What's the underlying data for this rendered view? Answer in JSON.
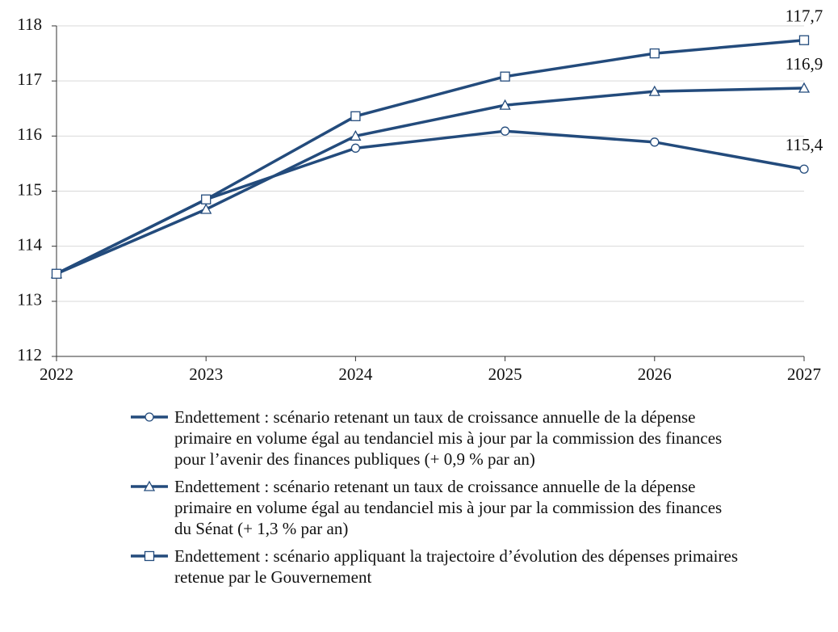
{
  "chart_data": {
    "type": "line",
    "categories": [
      "2022",
      "2023",
      "2024",
      "2025",
      "2026",
      "2027"
    ],
    "ylim": [
      112,
      118
    ],
    "yticks": [
      112,
      113,
      114,
      115,
      116,
      117,
      118
    ],
    "grid": true,
    "series": [
      {
        "name": "Endettement : scénario retenant un taux de croissance annuelle de la dépense primaire en volume égal au tendanciel mis à jour par la commission des finances pour l’avenir des finances publiques (+ 0,9 % par an)",
        "color": "#234b7c",
        "marker": "circle",
        "values": [
          113.5,
          114.85,
          115.78,
          116.09,
          115.89,
          115.4
        ],
        "value_labels": [
          null,
          null,
          null,
          null,
          null,
          "115,4"
        ]
      },
      {
        "name": "Endettement : scénario retenant un taux de croissance annuelle de la dépense primaire en volume égal au tendanciel mis à jour par la commission des finances du Sénat (+ 1,3 % par an)",
        "color": "#234b7c",
        "marker": "triangle",
        "values": [
          113.5,
          114.67,
          116.0,
          116.56,
          116.81,
          116.87
        ],
        "value_labels": [
          null,
          null,
          null,
          null,
          null,
          "116,9"
        ]
      },
      {
        "name": "Endettement : scénario appliquant la trajectoire d’évolution des dépenses primaires retenue par le Gouvernement",
        "color": "#234b7c",
        "marker": "square",
        "values": [
          113.5,
          114.85,
          116.36,
          117.08,
          117.5,
          117.74
        ],
        "value_labels": [
          null,
          null,
          null,
          null,
          null,
          "117,7"
        ]
      }
    ]
  }
}
